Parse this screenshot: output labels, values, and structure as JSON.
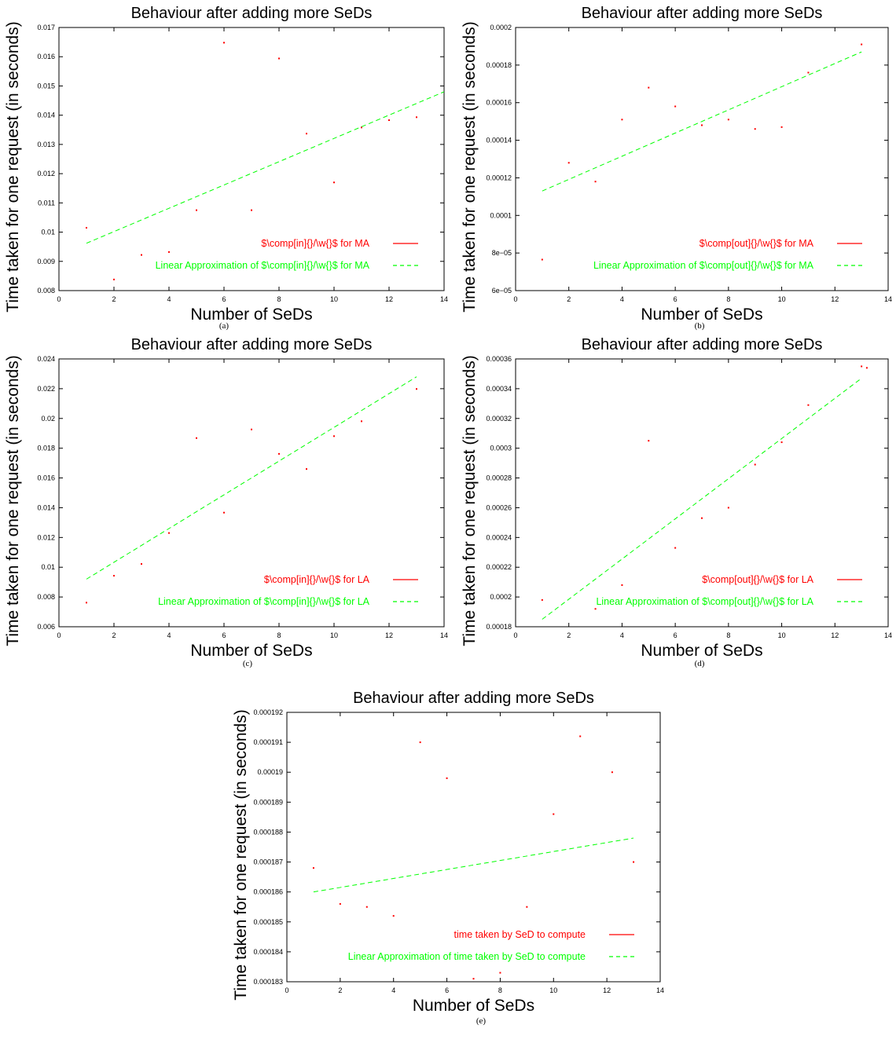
{
  "chart_data": [
    {
      "id": "a",
      "type": "scatter",
      "caption": "(a)",
      "title": "Behaviour after adding more SeDs",
      "xlabel": "Number of SeDs",
      "ylabel": "Time taken for one request (in seconds)",
      "xlim": [
        0,
        14
      ],
      "ylim": [
        0.008,
        0.017
      ],
      "xticks": [
        "0",
        "2",
        "4",
        "6",
        "8",
        "10",
        "12",
        "14"
      ],
      "yticks": [
        "0.008",
        "0.009",
        "0.01",
        "0.011",
        "0.012",
        "0.013",
        "0.014",
        "0.015",
        "0.016",
        "0.017"
      ],
      "legend_position": "bottom-right",
      "series": [
        {
          "name": "$\\comp[in]{}/\\w{}$ for MA",
          "color": "#ff0000",
          "style": "points",
          "x": [
            1,
            2,
            3,
            4,
            5,
            6,
            7,
            8,
            9,
            10,
            11,
            12,
            13
          ],
          "y": [
            0.01015,
            0.00838,
            0.00922,
            0.00932,
            0.01075,
            0.01648,
            0.01075,
            0.01594,
            0.01337,
            0.0117,
            0.01358,
            0.01383,
            0.01393
          ]
        },
        {
          "name": "Linear Approximation of $\\comp[in]{}/\\w{}$ for MA",
          "color": "#00ff00",
          "style": "dashed",
          "x": [
            1,
            14
          ],
          "y": [
            0.00962,
            0.0148
          ]
        }
      ]
    },
    {
      "id": "b",
      "type": "scatter",
      "caption": "(b)",
      "title": "Behaviour after adding more SeDs",
      "xlabel": "Number of SeDs",
      "ylabel": "Time taken for one request (in seconds)",
      "xlim": [
        0,
        14
      ],
      "ylim": [
        6e-05,
        0.0002
      ],
      "xticks": [
        "0",
        "2",
        "4",
        "6",
        "8",
        "10",
        "12",
        "14"
      ],
      "yticks": [
        "6e−05",
        "8e−05",
        "0.0001",
        "0.00012",
        "0.00014",
        "0.00016",
        "0.00018",
        "0.0002"
      ],
      "legend_position": "bottom-right",
      "series": [
        {
          "name": "$\\comp[out]{}/\\w{}$ for MA",
          "color": "#ff0000",
          "style": "points",
          "x": [
            1,
            2,
            3,
            4,
            5,
            6,
            7,
            8,
            9,
            10,
            11,
            13
          ],
          "y": [
            7.65e-05,
            0.000128,
            0.000118,
            0.000151,
            0.000168,
            0.000158,
            0.000148,
            0.000151,
            0.000146,
            0.000147,
            0.000176,
            0.000191
          ]
        },
        {
          "name": "Linear Approximation of $\\comp[out]{}/\\w{}$ for MA",
          "color": "#00ff00",
          "style": "dashed",
          "x": [
            1,
            13
          ],
          "y": [
            0.000113,
            0.000187
          ]
        }
      ]
    },
    {
      "id": "c",
      "type": "scatter",
      "caption": "(c)",
      "title": "Behaviour after adding more SeDs",
      "xlabel": "Number of SeDs",
      "ylabel": "Time taken for one request (in seconds)",
      "xlim": [
        0,
        14
      ],
      "ylim": [
        0.006,
        0.024
      ],
      "xticks": [
        "0",
        "2",
        "4",
        "6",
        "8",
        "10",
        "12",
        "14"
      ],
      "yticks": [
        "0.006",
        "0.008",
        "0.01",
        "0.012",
        "0.014",
        "0.016",
        "0.018",
        "0.02",
        "0.022",
        "0.024"
      ],
      "legend_position": "bottom-right",
      "series": [
        {
          "name": "$\\comp[in]{}/\\w{}$ for LA",
          "color": "#ff0000",
          "style": "points",
          "x": [
            1,
            2,
            3,
            4,
            5,
            6,
            7,
            8,
            9,
            10,
            11,
            13
          ],
          "y": [
            0.00762,
            0.00943,
            0.01022,
            0.0123,
            0.01868,
            0.01367,
            0.01926,
            0.01762,
            0.0166,
            0.01881,
            0.01981,
            0.02198
          ]
        },
        {
          "name": "Linear Approximation of $\\comp[in]{}/\\w{}$ for LA",
          "color": "#00ff00",
          "style": "dashed",
          "x": [
            1,
            13
          ],
          "y": [
            0.0092,
            0.0228
          ]
        }
      ]
    },
    {
      "id": "d",
      "type": "scatter",
      "caption": "(d)",
      "title": "Behaviour after adding more SeDs",
      "xlabel": "Number of SeDs",
      "ylabel": "Time taken for one request (in seconds)",
      "xlim": [
        0,
        14
      ],
      "ylim": [
        0.00018,
        0.00036
      ],
      "xticks": [
        "0",
        "2",
        "4",
        "6",
        "8",
        "10",
        "12",
        "14"
      ],
      "yticks": [
        "0.00018",
        "0.0002",
        "0.00022",
        "0.00024",
        "0.00026",
        "0.00028",
        "0.0003",
        "0.00032",
        "0.00034",
        "0.00036"
      ],
      "legend_position": "bottom-right",
      "series": [
        {
          "name": "$\\comp[out]{}/\\w{}$ for LA",
          "color": "#ff0000",
          "style": "points",
          "x": [
            1,
            3,
            4,
            5,
            6,
            7,
            8,
            9,
            10,
            11,
            13,
            13.2
          ],
          "y": [
            0.000198,
            0.000192,
            0.000208,
            0.000305,
            0.000233,
            0.000253,
            0.00026,
            0.000289,
            0.000304,
            0.000329,
            0.000355,
            0.000354
          ]
        },
        {
          "name": "Linear Approximation of $\\comp[out]{}/\\w{}$ for LA",
          "color": "#00ff00",
          "style": "dashed",
          "x": [
            1,
            13
          ],
          "y": [
            0.000185,
            0.000347
          ]
        }
      ]
    },
    {
      "id": "e",
      "type": "scatter",
      "caption": "(e)",
      "title": "Behaviour after adding more SeDs",
      "xlabel": "Number of SeDs",
      "ylabel": "Time taken for one request (in seconds)",
      "xlim": [
        0,
        14
      ],
      "ylim": [
        0.000183,
        0.000192
      ],
      "xticks": [
        "0",
        "2",
        "4",
        "6",
        "8",
        "10",
        "12",
        "14"
      ],
      "yticks": [
        "0.000183",
        "0.000184",
        "0.000185",
        "0.000186",
        "0.000187",
        "0.000188",
        "0.000189",
        "0.00019",
        "0.000191",
        "0.000192"
      ],
      "legend_position": "bottom-right",
      "series": [
        {
          "name": "time taken by SeD to compute",
          "color": "#ff0000",
          "style": "points",
          "x": [
            1,
            2,
            3,
            4,
            5,
            6,
            7,
            8,
            9,
            10,
            11,
            12.2,
            13
          ],
          "y": [
            0.0001868,
            0.0001856,
            0.0001855,
            0.0001852,
            0.000191,
            0.0001898,
            0.0001831,
            0.0001833,
            0.0001855,
            0.0001886,
            0.0001912,
            0.00019,
            0.000187
          ]
        },
        {
          "name": "Linear Approximation of  time taken by SeD to compute",
          "color": "#00ff00",
          "style": "dashed",
          "x": [
            1,
            13
          ],
          "y": [
            0.000186,
            0.0001878
          ]
        }
      ]
    }
  ]
}
